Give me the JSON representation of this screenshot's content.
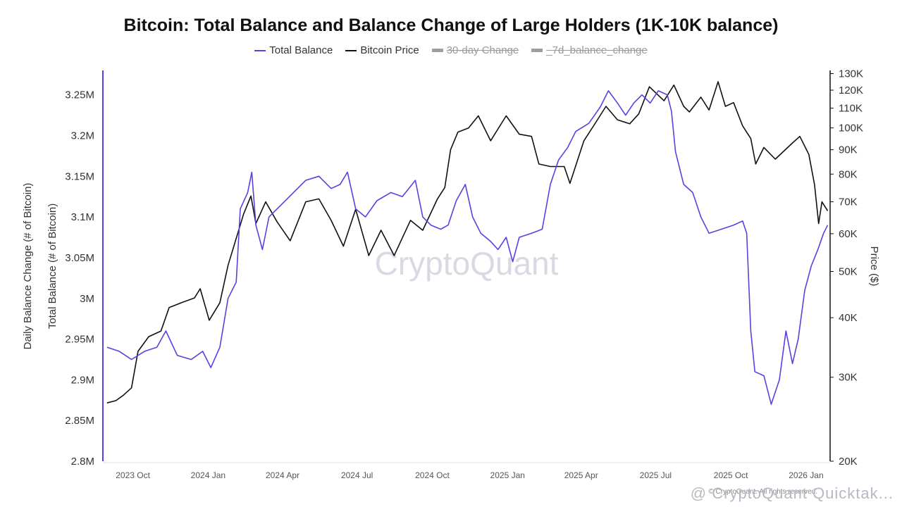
{
  "chart_data": {
    "type": "line",
    "title": "Bitcoin: Total Balance and Balance Change of Large Holders (1K-10K balance)",
    "legend_placement": "top-center",
    "legend": [
      {
        "name": "Total Balance",
        "color": "#5b3fe0",
        "visible": true
      },
      {
        "name": "Bitcoin Price",
        "color": "#111111",
        "visible": true
      },
      {
        "name": "30-day Change",
        "color": "#9e9e9e",
        "visible": false
      },
      {
        "name": "_7d_balance_change",
        "color": "#9e9e9e",
        "visible": false
      }
    ],
    "y_left_outer_label": "Daily Balance Change (# of Bitcoin)",
    "y_left_label": "Total Balance (# of Bitcoin)",
    "y_right_label": "Price ($)",
    "y_left_range": [
      2800000,
      3280000
    ],
    "y_left_ticks": [
      "3.25M",
      "3.2M",
      "3.15M",
      "3.1M",
      "3.05M",
      "3M",
      "2.95M",
      "2.9M",
      "2.85M",
      "2.8M"
    ],
    "y_left_tick_values": [
      3250000,
      3200000,
      3150000,
      3100000,
      3050000,
      3000000,
      2950000,
      2900000,
      2850000,
      2800000
    ],
    "y_right_scale": "log",
    "y_right_range": [
      20000,
      132000
    ],
    "y_right_ticks": [
      "130K",
      "120K",
      "110K",
      "100K",
      "90K",
      "80K",
      "70K",
      "60K",
      "50K",
      "40K",
      "30K",
      "20K"
    ],
    "y_right_tick_values": [
      130000,
      120000,
      110000,
      100000,
      90000,
      80000,
      70000,
      60000,
      50000,
      40000,
      30000,
      20000
    ],
    "x_ticks": [
      "2023 Oct",
      "2024 Jan",
      "2024 Apr",
      "2024 Jul",
      "2024 Oct",
      "2025 Jan",
      "2025 Apr",
      "2025 Jul",
      "2025 Oct",
      "2026 Jan"
    ],
    "x_tick_dates": [
      "2023-10-01",
      "2024-01-01",
      "2024-04-01",
      "2024-07-01",
      "2024-10-01",
      "2025-01-01",
      "2025-04-01",
      "2025-07-01",
      "2025-10-01",
      "2026-01-01"
    ],
    "x_range": [
      "2023-09-15",
      "2026-02-20"
    ],
    "grid": false,
    "series": [
      {
        "name": "Total Balance",
        "axis": "left",
        "color": "#5b3fe0",
        "points": [
          [
            "2023-09-20",
            2940000
          ],
          [
            "2023-10-05",
            2935000
          ],
          [
            "2023-10-20",
            2925000
          ],
          [
            "2023-11-05",
            2935000
          ],
          [
            "2023-11-20",
            2940000
          ],
          [
            "2023-12-01",
            2960000
          ],
          [
            "2023-12-15",
            2930000
          ],
          [
            "2024-01-01",
            2925000
          ],
          [
            "2024-01-15",
            2935000
          ],
          [
            "2024-01-25",
            2915000
          ],
          [
            "2024-02-05",
            2940000
          ],
          [
            "2024-02-15",
            3000000
          ],
          [
            "2024-02-25",
            3020000
          ],
          [
            "2024-03-01",
            3110000
          ],
          [
            "2024-03-10",
            3130000
          ],
          [
            "2024-03-15",
            3155000
          ],
          [
            "2024-03-20",
            3090000
          ],
          [
            "2024-03-28",
            3060000
          ],
          [
            "2024-04-05",
            3100000
          ],
          [
            "2024-04-20",
            3115000
          ],
          [
            "2024-05-05",
            3130000
          ],
          [
            "2024-05-20",
            3145000
          ],
          [
            "2024-06-05",
            3150000
          ],
          [
            "2024-06-20",
            3135000
          ],
          [
            "2024-07-01",
            3140000
          ],
          [
            "2024-07-10",
            3155000
          ],
          [
            "2024-07-20",
            3110000
          ],
          [
            "2024-08-01",
            3100000
          ],
          [
            "2024-08-15",
            3120000
          ],
          [
            "2024-09-01",
            3130000
          ],
          [
            "2024-09-15",
            3125000
          ],
          [
            "2024-10-01",
            3145000
          ],
          [
            "2024-10-10",
            3100000
          ],
          [
            "2024-10-20",
            3090000
          ],
          [
            "2024-11-01",
            3085000
          ],
          [
            "2024-11-10",
            3090000
          ],
          [
            "2024-11-20",
            3120000
          ],
          [
            "2024-12-01",
            3140000
          ],
          [
            "2024-12-10",
            3100000
          ],
          [
            "2024-12-20",
            3080000
          ],
          [
            "2025-01-01",
            3070000
          ],
          [
            "2025-01-10",
            3060000
          ],
          [
            "2025-01-20",
            3075000
          ],
          [
            "2025-01-28",
            3045000
          ],
          [
            "2025-02-05",
            3075000
          ],
          [
            "2025-02-20",
            3080000
          ],
          [
            "2025-03-05",
            3085000
          ],
          [
            "2025-03-15",
            3140000
          ],
          [
            "2025-03-25",
            3170000
          ],
          [
            "2025-04-05",
            3185000
          ],
          [
            "2025-04-15",
            3205000
          ],
          [
            "2025-05-01",
            3215000
          ],
          [
            "2025-05-15",
            3235000
          ],
          [
            "2025-05-25",
            3255000
          ],
          [
            "2025-06-05",
            3240000
          ],
          [
            "2025-06-15",
            3225000
          ],
          [
            "2025-06-25",
            3240000
          ],
          [
            "2025-07-05",
            3250000
          ],
          [
            "2025-07-15",
            3240000
          ],
          [
            "2025-07-25",
            3255000
          ],
          [
            "2025-08-05",
            3250000
          ],
          [
            "2025-08-10",
            3230000
          ],
          [
            "2025-08-15",
            3180000
          ],
          [
            "2025-08-25",
            3140000
          ],
          [
            "2025-09-05",
            3130000
          ],
          [
            "2025-09-15",
            3100000
          ],
          [
            "2025-09-25",
            3080000
          ],
          [
            "2025-10-10",
            3085000
          ],
          [
            "2025-10-25",
            3090000
          ],
          [
            "2025-11-05",
            3095000
          ],
          [
            "2025-11-10",
            3080000
          ],
          [
            "2025-11-15",
            2960000
          ],
          [
            "2025-11-20",
            2910000
          ],
          [
            "2025-12-01",
            2905000
          ],
          [
            "2025-12-10",
            2870000
          ],
          [
            "2025-12-20",
            2900000
          ],
          [
            "2025-12-28",
            2960000
          ],
          [
            "2026-01-05",
            2920000
          ],
          [
            "2026-01-12",
            2950000
          ],
          [
            "2026-01-20",
            3010000
          ],
          [
            "2026-01-28",
            3040000
          ],
          [
            "2026-02-05",
            3060000
          ],
          [
            "2026-02-12",
            3080000
          ],
          [
            "2026-02-17",
            3090000
          ]
        ]
      },
      {
        "name": "Bitcoin Price",
        "axis": "right",
        "color": "#111111",
        "points": [
          [
            "2023-09-20",
            26500
          ],
          [
            "2023-10-01",
            26800
          ],
          [
            "2023-10-10",
            27500
          ],
          [
            "2023-10-20",
            28500
          ],
          [
            "2023-10-28",
            34000
          ],
          [
            "2023-11-10",
            36500
          ],
          [
            "2023-11-25",
            37500
          ],
          [
            "2023-12-05",
            42000
          ],
          [
            "2023-12-20",
            43000
          ],
          [
            "2024-01-05",
            44000
          ],
          [
            "2024-01-12",
            46000
          ],
          [
            "2024-01-23",
            39500
          ],
          [
            "2024-02-05",
            43000
          ],
          [
            "2024-02-15",
            51500
          ],
          [
            "2024-02-28",
            61000
          ],
          [
            "2024-03-05",
            66000
          ],
          [
            "2024-03-14",
            72000
          ],
          [
            "2024-03-20",
            63000
          ],
          [
            "2024-04-01",
            70000
          ],
          [
            "2024-04-15",
            63500
          ],
          [
            "2024-05-01",
            58000
          ],
          [
            "2024-05-20",
            70000
          ],
          [
            "2024-06-05",
            71000
          ],
          [
            "2024-06-20",
            64000
          ],
          [
            "2024-07-05",
            56500
          ],
          [
            "2024-07-20",
            67500
          ],
          [
            "2024-08-05",
            54000
          ],
          [
            "2024-08-20",
            61000
          ],
          [
            "2024-09-05",
            54000
          ],
          [
            "2024-09-25",
            64000
          ],
          [
            "2024-10-10",
            61000
          ],
          [
            "2024-10-28",
            71000
          ],
          [
            "2024-11-06",
            75000
          ],
          [
            "2024-11-13",
            90000
          ],
          [
            "2024-11-22",
            98000
          ],
          [
            "2024-12-05",
            100000
          ],
          [
            "2024-12-17",
            106000
          ],
          [
            "2025-01-01",
            94000
          ],
          [
            "2025-01-20",
            106000
          ],
          [
            "2025-02-05",
            97000
          ],
          [
            "2025-02-20",
            96000
          ],
          [
            "2025-03-01",
            84000
          ],
          [
            "2025-03-15",
            83000
          ],
          [
            "2025-04-01",
            83000
          ],
          [
            "2025-04-08",
            76500
          ],
          [
            "2025-04-25",
            94000
          ],
          [
            "2025-05-10",
            103000
          ],
          [
            "2025-05-22",
            111000
          ],
          [
            "2025-06-05",
            104000
          ],
          [
            "2025-06-20",
            102000
          ],
          [
            "2025-07-01",
            107000
          ],
          [
            "2025-07-14",
            122000
          ],
          [
            "2025-08-01",
            114000
          ],
          [
            "2025-08-13",
            123000
          ],
          [
            "2025-08-25",
            111000
          ],
          [
            "2025-09-01",
            108000
          ],
          [
            "2025-09-15",
            116000
          ],
          [
            "2025-09-25",
            109000
          ],
          [
            "2025-10-06",
            125000
          ],
          [
            "2025-10-15",
            111000
          ],
          [
            "2025-10-25",
            113000
          ],
          [
            "2025-11-05",
            101000
          ],
          [
            "2025-11-15",
            95000
          ],
          [
            "2025-11-21",
            84000
          ],
          [
            "2025-12-01",
            91000
          ],
          [
            "2025-12-15",
            86000
          ],
          [
            "2026-01-05",
            93000
          ],
          [
            "2026-01-14",
            96000
          ],
          [
            "2026-01-25",
            88000
          ],
          [
            "2026-02-01",
            76000
          ],
          [
            "2026-02-06",
            63000
          ],
          [
            "2026-02-10",
            70000
          ],
          [
            "2026-02-17",
            67000
          ]
        ]
      }
    ]
  },
  "watermark": "CryptoQuant",
  "footer_watermark": "@ CryptoQuant Quicktak...",
  "footer_credit": "© CryptoQuant. All rights reserved."
}
